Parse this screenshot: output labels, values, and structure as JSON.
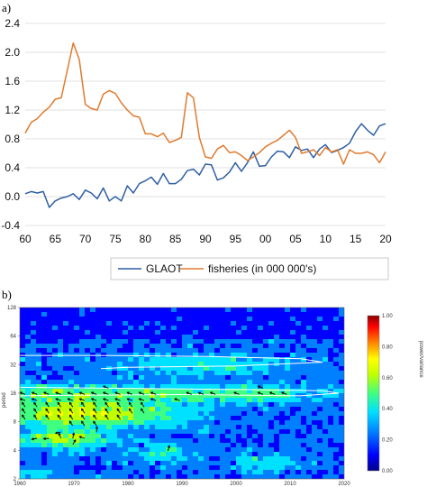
{
  "chart_data": [
    {
      "type": "line",
      "panel_label": "a)",
      "x_ticks": [
        "60",
        "65",
        "70",
        "75",
        "80",
        "85",
        "90",
        "95",
        "00",
        "05",
        "10",
        "15",
        "20"
      ],
      "y_ticks": [
        "2.4",
        "2.0",
        "1.6",
        "1.2",
        "0.8",
        "0.4",
        "0.0",
        "-0.4"
      ],
      "xlim": [
        1960,
        2020
      ],
      "ylim": [
        -0.4,
        2.4
      ],
      "grid": "horizontal",
      "legend_position": "bottom",
      "colors": {
        "GLAOT": "#2e5fa3",
        "fisheries": "#e07b2e"
      },
      "series": [
        {
          "name": "GLAOT",
          "x": [
            1960,
            1961,
            1962,
            1963,
            1964,
            1965,
            1966,
            1967,
            1968,
            1969,
            1970,
            1971,
            1972,
            1973,
            1974,
            1975,
            1976,
            1977,
            1978,
            1979,
            1980,
            1981,
            1982,
            1983,
            1984,
            1985,
            1986,
            1987,
            1988,
            1989,
            1990,
            1991,
            1992,
            1993,
            1994,
            1995,
            1996,
            1997,
            1998,
            1999,
            2000,
            2001,
            2002,
            2003,
            2004,
            2005,
            2006,
            2007,
            2008,
            2009,
            2010,
            2011,
            2012,
            2013,
            2014,
            2015,
            2016,
            2017,
            2018,
            2019,
            2020
          ],
          "values": [
            0.04,
            0.07,
            0.05,
            0.07,
            -0.15,
            -0.06,
            -0.02,
            0.0,
            0.04,
            -0.04,
            0.09,
            0.05,
            -0.03,
            0.12,
            -0.06,
            0.0,
            -0.06,
            0.15,
            0.05,
            0.18,
            0.22,
            0.27,
            0.17,
            0.32,
            0.18,
            0.18,
            0.24,
            0.36,
            0.38,
            0.3,
            0.45,
            0.44,
            0.23,
            0.26,
            0.34,
            0.47,
            0.35,
            0.47,
            0.62,
            0.42,
            0.43,
            0.55,
            0.63,
            0.62,
            0.54,
            0.69,
            0.64,
            0.66,
            0.54,
            0.66,
            0.72,
            0.61,
            0.64,
            0.68,
            0.74,
            0.9,
            1.01,
            0.92,
            0.85,
            0.98,
            1.01
          ]
        },
        {
          "name": "fisheries (in 000 000's)",
          "x": [
            1960,
            1961,
            1962,
            1963,
            1964,
            1965,
            1966,
            1967,
            1968,
            1969,
            1970,
            1971,
            1972,
            1973,
            1974,
            1975,
            1976,
            1977,
            1978,
            1979,
            1980,
            1981,
            1982,
            1983,
            1984,
            1985,
            1986,
            1987,
            1988,
            1989,
            1990,
            1991,
            1992,
            1993,
            1994,
            1995,
            1996,
            1997,
            1998,
            1999,
            2000,
            2001,
            2002,
            2003,
            2004,
            2005,
            2006,
            2007,
            2008,
            2009,
            2010,
            2011,
            2012,
            2013,
            2014,
            2015,
            2016,
            2017,
            2018,
            2019,
            2020
          ],
          "values": [
            0.88,
            1.03,
            1.08,
            1.17,
            1.24,
            1.35,
            1.37,
            1.75,
            2.13,
            1.9,
            1.28,
            1.22,
            1.2,
            1.42,
            1.47,
            1.43,
            1.3,
            1.2,
            1.12,
            1.1,
            0.87,
            0.87,
            0.83,
            0.88,
            0.75,
            0.78,
            0.82,
            1.44,
            1.37,
            0.82,
            0.55,
            0.53,
            0.66,
            0.71,
            0.61,
            0.62,
            0.57,
            0.5,
            0.55,
            0.61,
            0.69,
            0.74,
            0.78,
            0.85,
            0.92,
            0.82,
            0.6,
            0.62,
            0.65,
            0.57,
            0.68,
            0.62,
            0.65,
            0.45,
            0.65,
            0.6,
            0.6,
            0.62,
            0.58,
            0.47,
            0.62
          ]
        }
      ]
    },
    {
      "type": "heatmap",
      "panel_label": "b)",
      "ylabel": "period",
      "x_ticks": [
        "1960",
        "1970",
        "1980",
        "1990",
        "2000",
        "2010",
        "2020"
      ],
      "y_ticks": [
        "128",
        "64",
        "32",
        "16",
        "8",
        "4",
        "2"
      ],
      "colorbar_ticks": [
        "1.00",
        "0.80",
        "0.60",
        "0.40",
        "0.20",
        "0.00"
      ],
      "colorbar_label": "power/variance",
      "xlim": [
        1960,
        2020
      ],
      "period_range": [
        2,
        128
      ],
      "legend_position": "right",
      "colormap": [
        "#00008b",
        "#0000ff",
        "#0080ff",
        "#00e0ff",
        "#40ff80",
        "#c0ff00",
        "#ffff00",
        "#ff8000",
        "#ff0000",
        "#8b0000"
      ]
    }
  ]
}
